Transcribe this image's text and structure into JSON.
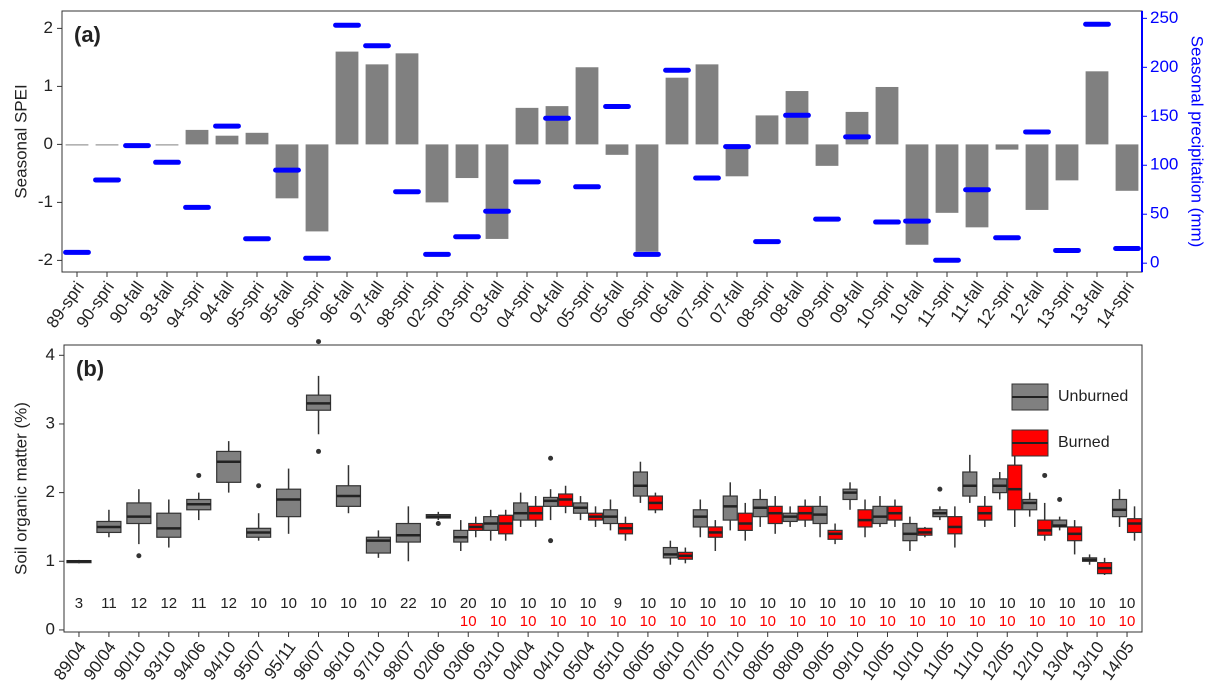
{
  "chart_data": [
    {
      "type": "bar",
      "title": "(a)",
      "y_label": "Seasonal SPEI",
      "y2_label": "Seasonal precipitation (mm)",
      "categories": [
        "89-spri",
        "90-spri",
        "90-fall",
        "93-fall",
        "94-spri",
        "94-fall",
        "95-spri",
        "95-fall",
        "96-spri",
        "96-fall",
        "97-fall",
        "98-spri",
        "02-spri",
        "03-spri",
        "03-fall",
        "04-spri",
        "04-fall",
        "05-spri",
        "05-fall",
        "06-spri",
        "06-fall",
        "07-spri",
        "07-fall",
        "08-spri",
        "08-fall",
        "09-spri",
        "09-fall",
        "10-spri",
        "10-fall",
        "11-spri",
        "11-fall",
        "12-spri",
        "12-fall",
        "13-spri",
        "13-fall",
        "14-spri"
      ],
      "series": [
        {
          "name": "Seasonal SPEI",
          "color": "#808080",
          "mark": "bar",
          "values": [
            0,
            0,
            0,
            0,
            0.25,
            0.15,
            0.2,
            -0.93,
            -1.5,
            1.6,
            1.38,
            1.57,
            -1.0,
            -0.58,
            -1.63,
            0.63,
            0.66,
            1.33,
            -0.18,
            -1.85,
            1.15,
            1.38,
            -0.55,
            0.5,
            0.92,
            -0.37,
            0.56,
            0.99,
            -1.73,
            -1.18,
            -1.43,
            -0.09,
            -1.13,
            -0.62,
            1.26,
            -0.8
          ]
        },
        {
          "name": "Seasonal precipitation (mm)",
          "color": "#0000ff",
          "mark": "dash",
          "axis": "y2",
          "values": [
            11,
            85,
            120,
            103,
            57,
            140,
            25,
            95,
            5,
            243,
            222,
            73,
            9,
            27,
            53,
            83,
            148,
            78,
            160,
            9,
            197,
            87,
            119,
            22,
            151,
            45,
            129,
            42,
            43,
            3,
            75,
            26,
            134,
            13,
            244,
            15
          ]
        }
      ],
      "ylim": [
        -2.2,
        2.3
      ],
      "yticks": [
        -2,
        -1,
        0,
        1,
        2
      ],
      "y2lim": [
        -9,
        257.5
      ],
      "y2ticks": [
        0,
        50,
        100,
        150,
        200,
        250
      ]
    },
    {
      "type": "box",
      "title": "(b)",
      "y_label": "Soil organic matter (%)",
      "categories": [
        "89/04",
        "90/04",
        "90/10",
        "93/10",
        "94/06",
        "94/10",
        "95/07",
        "95/11",
        "96/07",
        "96/10",
        "97/10",
        "98/07",
        "02/06",
        "03/06",
        "03/10",
        "04/04",
        "04/10",
        "05/04",
        "05/10",
        "06/05",
        "06/10",
        "07/05",
        "07/10",
        "08/05",
        "08/09",
        "09/05",
        "09/10",
        "10/05",
        "10/10",
        "11/05",
        "11/10",
        "12/05",
        "12/10",
        "13/04",
        "13/10",
        "14/05"
      ],
      "ylim": [
        -0.03,
        4.15
      ],
      "yticks": [
        0,
        1,
        2,
        3,
        4
      ],
      "legend": "top-right",
      "series": [
        {
          "name": "Unburned",
          "color": "#808080",
          "counts": [
            3,
            11,
            12,
            12,
            11,
            12,
            10,
            10,
            10,
            10,
            10,
            22,
            10,
            20,
            10,
            10,
            10,
            10,
            9,
            10,
            10,
            10,
            10,
            10,
            10,
            10,
            10,
            10,
            10,
            10,
            10,
            10,
            10,
            10,
            10,
            10
          ],
          "boxes": [
            {
              "low": 0.97,
              "q1": 0.98,
              "med": 1.0,
              "q3": 1.01,
              "high": 1.02
            },
            {
              "low": 1.35,
              "q1": 1.42,
              "med": 1.5,
              "q3": 1.58,
              "high": 1.75
            },
            {
              "low": 1.25,
              "q1": 1.55,
              "med": 1.65,
              "q3": 1.85,
              "high": 2.05,
              "outliers": [
                1.08
              ]
            },
            {
              "low": 1.2,
              "q1": 1.35,
              "med": 1.48,
              "q3": 1.7,
              "high": 1.9
            },
            {
              "low": 1.6,
              "q1": 1.75,
              "med": 1.83,
              "q3": 1.9,
              "high": 2.0,
              "outliers": [
                2.25
              ]
            },
            {
              "low": 2.0,
              "q1": 2.15,
              "med": 2.45,
              "q3": 2.6,
              "high": 2.75
            },
            {
              "low": 1.3,
              "q1": 1.35,
              "med": 1.42,
              "q3": 1.48,
              "high": 1.7,
              "outliers": [
                2.1
              ]
            },
            {
              "low": 1.4,
              "q1": 1.65,
              "med": 1.9,
              "q3": 2.05,
              "high": 2.35
            },
            {
              "low": 2.85,
              "q1": 3.2,
              "med": 3.3,
              "q3": 3.42,
              "high": 3.7,
              "outliers": [
                4.2,
                2.6
              ]
            },
            {
              "low": 1.7,
              "q1": 1.8,
              "med": 1.95,
              "q3": 2.1,
              "high": 2.4
            },
            {
              "low": 1.05,
              "q1": 1.12,
              "med": 1.3,
              "q3": 1.35,
              "high": 1.45
            },
            {
              "low": 1.0,
              "q1": 1.28,
              "med": 1.38,
              "q3": 1.55,
              "high": 1.8
            },
            {
              "low": 1.6,
              "q1": 1.63,
              "med": 1.65,
              "q3": 1.68,
              "high": 1.72,
              "outliers": [
                1.55
              ]
            },
            {
              "low": 1.15,
              "q1": 1.28,
              "med": 1.35,
              "q3": 1.45,
              "high": 1.6
            },
            {
              "low": 1.3,
              "q1": 1.45,
              "med": 1.55,
              "q3": 1.65,
              "high": 1.75
            },
            {
              "low": 1.5,
              "q1": 1.6,
              "med": 1.7,
              "q3": 1.85,
              "high": 2.0
            },
            {
              "low": 1.6,
              "q1": 1.8,
              "med": 1.88,
              "q3": 1.93,
              "high": 2.05,
              "outliers": [
                2.5,
                1.3
              ]
            },
            {
              "low": 1.6,
              "q1": 1.7,
              "med": 1.78,
              "q3": 1.85,
              "high": 1.95
            },
            {
              "low": 1.45,
              "q1": 1.55,
              "med": 1.65,
              "q3": 1.75,
              "high": 1.9
            },
            {
              "low": 1.85,
              "q1": 1.95,
              "med": 2.1,
              "q3": 2.3,
              "high": 2.45
            },
            {
              "low": 0.95,
              "q1": 1.05,
              "med": 1.1,
              "q3": 1.2,
              "high": 1.3
            },
            {
              "low": 1.35,
              "q1": 1.5,
              "med": 1.65,
              "q3": 1.75,
              "high": 1.9
            },
            {
              "low": 1.45,
              "q1": 1.6,
              "med": 1.8,
              "q3": 1.95,
              "high": 2.15
            },
            {
              "low": 1.5,
              "q1": 1.65,
              "med": 1.78,
              "q3": 1.9,
              "high": 2.05
            },
            {
              "low": 1.5,
              "q1": 1.58,
              "med": 1.65,
              "q3": 1.7,
              "high": 1.8
            },
            {
              "low": 1.35,
              "q1": 1.55,
              "med": 1.68,
              "q3": 1.8,
              "high": 1.95
            },
            {
              "low": 1.75,
              "q1": 1.9,
              "med": 2.0,
              "q3": 2.05,
              "high": 2.15
            },
            {
              "low": 1.5,
              "q1": 1.55,
              "med": 1.65,
              "q3": 1.8,
              "high": 1.95
            },
            {
              "low": 1.15,
              "q1": 1.3,
              "med": 1.4,
              "q3": 1.55,
              "high": 1.65
            },
            {
              "low": 1.6,
              "q1": 1.65,
              "med": 1.7,
              "q3": 1.75,
              "high": 1.8,
              "outliers": [
                2.05
              ]
            },
            {
              "low": 1.85,
              "q1": 1.95,
              "med": 2.1,
              "q3": 2.3,
              "high": 2.55
            },
            {
              "low": 1.9,
              "q1": 2.0,
              "med": 2.1,
              "q3": 2.2,
              "high": 2.3
            },
            {
              "low": 1.65,
              "q1": 1.75,
              "med": 1.85,
              "q3": 1.9,
              "high": 2.0
            },
            {
              "low": 1.45,
              "q1": 1.5,
              "med": 1.52,
              "q3": 1.6,
              "high": 1.65,
              "outliers": [
                1.9
              ]
            },
            {
              "low": 0.95,
              "q1": 1.0,
              "med": 1.02,
              "q3": 1.05,
              "high": 1.1
            },
            {
              "low": 1.5,
              "q1": 1.65,
              "med": 1.75,
              "q3": 1.9,
              "high": 2.05
            }
          ]
        },
        {
          "name": "Burned",
          "color": "#ff0000",
          "counts": [
            null,
            null,
            null,
            null,
            null,
            null,
            null,
            null,
            null,
            null,
            null,
            null,
            null,
            10,
            10,
            10,
            10,
            10,
            10,
            10,
            10,
            10,
            10,
            10,
            10,
            10,
            10,
            10,
            10,
            10,
            10,
            10,
            10,
            10,
            10,
            10
          ],
          "boxes": [
            null,
            null,
            null,
            null,
            null,
            null,
            null,
            null,
            null,
            null,
            null,
            null,
            null,
            {
              "low": 1.35,
              "q1": 1.45,
              "med": 1.5,
              "q3": 1.55,
              "high": 1.65
            },
            {
              "low": 1.3,
              "q1": 1.4,
              "med": 1.55,
              "q3": 1.67,
              "high": 1.75
            },
            {
              "low": 1.5,
              "q1": 1.6,
              "med": 1.7,
              "q3": 1.8,
              "high": 1.95
            },
            {
              "low": 1.7,
              "q1": 1.8,
              "med": 1.9,
              "q3": 1.98,
              "high": 2.1
            },
            {
              "low": 1.5,
              "q1": 1.6,
              "med": 1.65,
              "q3": 1.7,
              "high": 1.8
            },
            {
              "low": 1.3,
              "q1": 1.4,
              "med": 1.48,
              "q3": 1.55,
              "high": 1.65
            },
            {
              "low": 1.7,
              "q1": 1.75,
              "med": 1.85,
              "q3": 1.95,
              "high": 2.0
            },
            {
              "low": 0.97,
              "q1": 1.03,
              "med": 1.08,
              "q3": 1.13,
              "high": 1.2
            },
            {
              "low": 1.15,
              "q1": 1.35,
              "med": 1.42,
              "q3": 1.5,
              "high": 1.6
            },
            {
              "low": 1.3,
              "q1": 1.45,
              "med": 1.55,
              "q3": 1.7,
              "high": 1.85
            },
            {
              "low": 1.4,
              "q1": 1.55,
              "med": 1.7,
              "q3": 1.8,
              "high": 1.95
            },
            {
              "low": 1.5,
              "q1": 1.6,
              "med": 1.7,
              "q3": 1.8,
              "high": 1.9
            },
            {
              "low": 1.25,
              "q1": 1.32,
              "med": 1.4,
              "q3": 1.45,
              "high": 1.55
            },
            {
              "low": 1.35,
              "q1": 1.5,
              "med": 1.6,
              "q3": 1.75,
              "high": 1.9
            },
            {
              "low": 1.5,
              "q1": 1.6,
              "med": 1.7,
              "q3": 1.8,
              "high": 1.9
            },
            {
              "low": 1.35,
              "q1": 1.38,
              "med": 1.42,
              "q3": 1.48,
              "high": 1.5
            },
            {
              "low": 1.2,
              "q1": 1.4,
              "med": 1.5,
              "q3": 1.65,
              "high": 1.8
            },
            {
              "low": 1.5,
              "q1": 1.6,
              "med": 1.7,
              "q3": 1.8,
              "high": 1.95
            },
            {
              "low": 1.5,
              "q1": 1.75,
              "med": 2.05,
              "q3": 2.4,
              "high": 2.65
            },
            {
              "low": 1.3,
              "q1": 1.38,
              "med": 1.45,
              "q3": 1.6,
              "high": 1.85,
              "outliers": [
                2.25
              ]
            },
            {
              "low": 1.1,
              "q1": 1.3,
              "med": 1.4,
              "q3": 1.5,
              "high": 1.6
            },
            {
              "low": 0.8,
              "q1": 0.82,
              "med": 0.9,
              "q3": 0.98,
              "high": 1.05
            },
            {
              "low": 1.3,
              "q1": 1.42,
              "med": 1.55,
              "q3": 1.62,
              "high": 1.8
            }
          ]
        }
      ]
    }
  ]
}
